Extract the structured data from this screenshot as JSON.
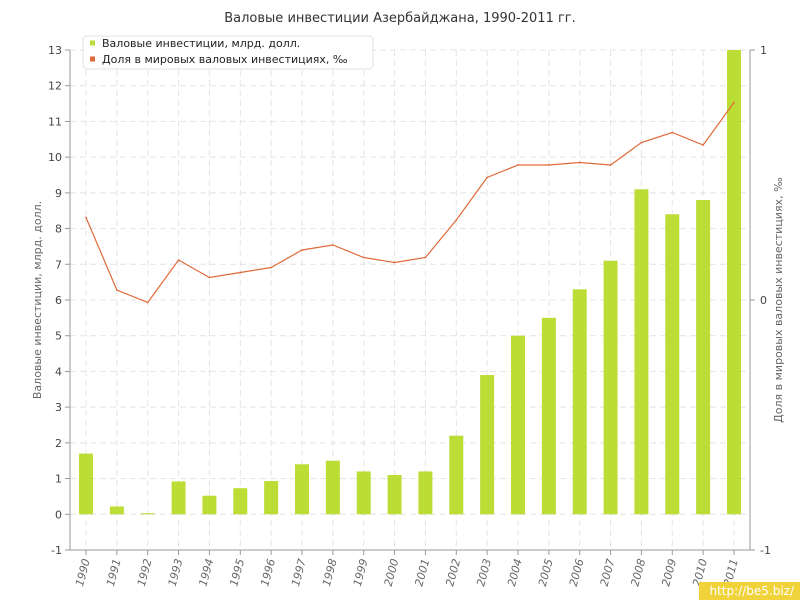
{
  "watermark": "http://be5.biz/",
  "chart_data": {
    "type": "bar",
    "title": "Валовые инвестиции Азербайджана, 1990-2011 гг.",
    "xlabel": "",
    "ylabel": "Валовые инвестиции, млрд. долл.",
    "y2label": "Доля в мировых валовых инвестициях, ‰",
    "categories": [
      "1990",
      "1991",
      "1992",
      "1993",
      "1994",
      "1995",
      "1996",
      "1997",
      "1998",
      "1999",
      "2000",
      "2001",
      "2002",
      "2003",
      "2004",
      "2005",
      "2006",
      "2007",
      "2008",
      "2009",
      "2010",
      "2011"
    ],
    "ylim": [
      -1,
      13
    ],
    "yticks": [
      -1,
      0,
      1,
      2,
      3,
      4,
      5,
      6,
      7,
      8,
      9,
      10,
      11,
      12,
      13
    ],
    "y2lim": [
      -1,
      1
    ],
    "y2ticks": [
      -1,
      0,
      1
    ],
    "grid": true,
    "legend_position": "top-left",
    "series": [
      {
        "name": "Валовые инвестиции, млрд. долл.",
        "kind": "bar",
        "axis": "left",
        "color": "#bcdd35",
        "values": [
          1.7,
          0.22,
          0.03,
          0.92,
          0.52,
          0.73,
          0.93,
          1.4,
          1.5,
          1.2,
          1.1,
          1.2,
          2.2,
          3.9,
          5.0,
          5.5,
          6.3,
          7.1,
          9.1,
          8.4,
          8.8,
          13.0
        ]
      },
      {
        "name": "Доля в мировых валовых инвестициях, ‰",
        "kind": "line",
        "axis": "right",
        "color": "#e06a3a",
        "values": [
          0.33,
          0.04,
          -0.01,
          0.16,
          0.09,
          0.11,
          0.13,
          0.2,
          0.22,
          0.17,
          0.15,
          0.17,
          0.32,
          0.49,
          0.54,
          0.54,
          0.55,
          0.54,
          0.63,
          0.67,
          0.62,
          0.79
        ]
      }
    ]
  }
}
